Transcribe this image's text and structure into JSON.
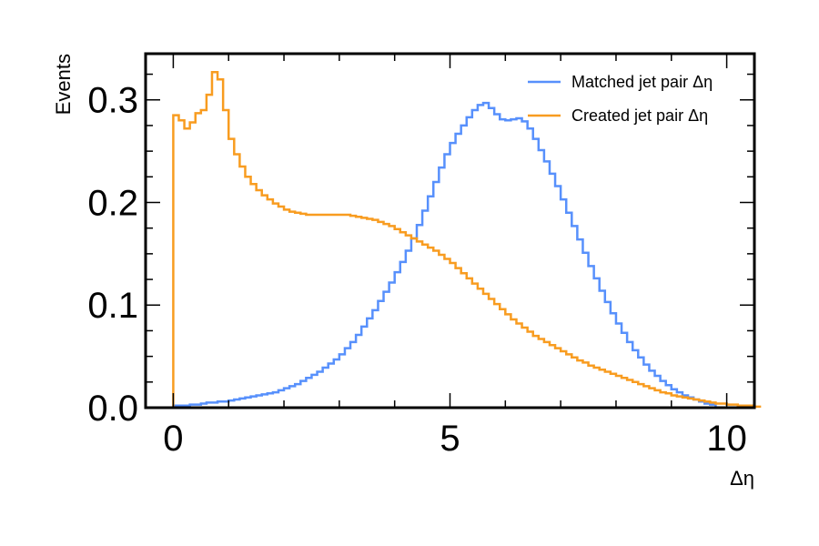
{
  "chart_data": {
    "type": "histogram",
    "title": "",
    "xlabel": "Δη",
    "ylabel": "Events",
    "xlim": [
      -0.5,
      10.5
    ],
    "ylim": [
      0.0,
      0.345
    ],
    "x_ticks": [
      {
        "value": 0,
        "label": "0"
      },
      {
        "value": 5,
        "label": "5"
      },
      {
        "value": 10,
        "label": "10"
      }
    ],
    "y_ticks": [
      {
        "value": 0.0,
        "label": "0.0"
      },
      {
        "value": 0.1,
        "label": "0.1"
      },
      {
        "value": 0.2,
        "label": "0.2"
      },
      {
        "value": 0.3,
        "label": "0.3"
      }
    ],
    "x_minor_step": 1,
    "y_minor_step": 0.025,
    "legend_position": "top-right",
    "grid": false,
    "bin_width": 0.1,
    "bin_start": 0.0,
    "series": [
      {
        "name": "Matched jet pair Δη",
        "color": "#5790fc",
        "values": [
          0.002,
          0.002,
          0.002,
          0.003,
          0.003,
          0.004,
          0.005,
          0.005,
          0.006,
          0.006,
          0.007,
          0.008,
          0.009,
          0.01,
          0.011,
          0.012,
          0.013,
          0.014,
          0.015,
          0.017,
          0.019,
          0.021,
          0.023,
          0.026,
          0.029,
          0.032,
          0.035,
          0.039,
          0.043,
          0.047,
          0.052,
          0.058,
          0.064,
          0.071,
          0.079,
          0.087,
          0.095,
          0.104,
          0.113,
          0.122,
          0.132,
          0.142,
          0.153,
          0.165,
          0.178,
          0.192,
          0.206,
          0.22,
          0.234,
          0.247,
          0.258,
          0.267,
          0.275,
          0.283,
          0.29,
          0.295,
          0.297,
          0.292,
          0.286,
          0.281,
          0.28,
          0.281,
          0.282,
          0.279,
          0.272,
          0.262,
          0.251,
          0.24,
          0.228,
          0.216,
          0.203,
          0.19,
          0.177,
          0.164,
          0.151,
          0.138,
          0.126,
          0.114,
          0.103,
          0.092,
          0.082,
          0.073,
          0.064,
          0.056,
          0.049,
          0.042,
          0.036,
          0.031,
          0.026,
          0.022,
          0.018,
          0.015,
          0.012,
          0.01,
          0.008,
          0.006,
          0.004,
          0.003
        ]
      },
      {
        "name": "Created jet pair Δη",
        "color": "#f89c20",
        "values": [
          0.285,
          0.28,
          0.272,
          0.278,
          0.287,
          0.29,
          0.305,
          0.327,
          0.32,
          0.29,
          0.262,
          0.247,
          0.235,
          0.225,
          0.218,
          0.212,
          0.207,
          0.203,
          0.199,
          0.196,
          0.193,
          0.191,
          0.19,
          0.189,
          0.188,
          0.188,
          0.188,
          0.188,
          0.188,
          0.188,
          0.188,
          0.188,
          0.187,
          0.186,
          0.185,
          0.184,
          0.183,
          0.181,
          0.179,
          0.177,
          0.174,
          0.171,
          0.168,
          0.165,
          0.162,
          0.159,
          0.156,
          0.153,
          0.149,
          0.145,
          0.141,
          0.136,
          0.131,
          0.126,
          0.121,
          0.116,
          0.111,
          0.106,
          0.101,
          0.096,
          0.091,
          0.086,
          0.082,
          0.078,
          0.074,
          0.07,
          0.067,
          0.064,
          0.061,
          0.058,
          0.055,
          0.052,
          0.049,
          0.046,
          0.044,
          0.041,
          0.039,
          0.037,
          0.035,
          0.033,
          0.031,
          0.029,
          0.027,
          0.025,
          0.023,
          0.021,
          0.019,
          0.017,
          0.015,
          0.014,
          0.012,
          0.011,
          0.01,
          0.009,
          0.008,
          0.007,
          0.006,
          0.005,
          0.004,
          0.004,
          0.003,
          0.003,
          0.002,
          0.002,
          0.002,
          0.001
        ]
      }
    ]
  }
}
